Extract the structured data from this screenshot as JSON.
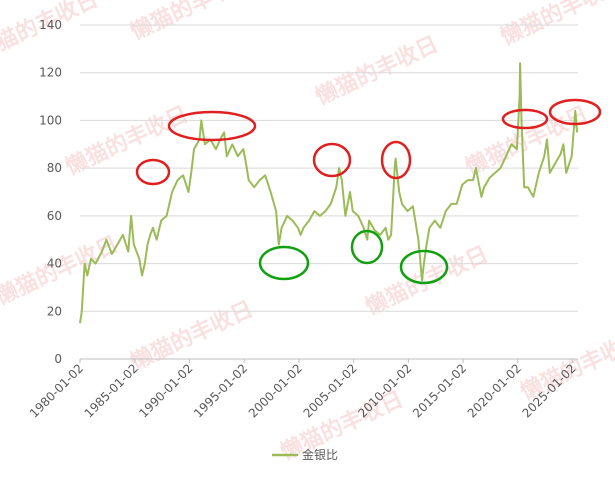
{
  "watermark": "懒猫的丰收日",
  "chart_data": {
    "type": "line",
    "x": [
      "1980-01-02",
      "1980-03-02",
      "1980-06-02",
      "1980-09-02",
      "1981-01-02",
      "1981-06-02",
      "1982-01-02",
      "1982-06-02",
      "1982-12-02",
      "1983-06-02",
      "1983-12-02",
      "1984-06-02",
      "1984-09-02",
      "1984-12-02",
      "1985-06-02",
      "1985-09-02",
      "1985-12-02",
      "1986-03-02",
      "1986-06-02",
      "1986-09-02",
      "1987-01-02",
      "1987-06-02",
      "1987-12-02",
      "1988-06-02",
      "1988-12-02",
      "1989-06-02",
      "1989-12-02",
      "1990-03-02",
      "1990-06-02",
      "1990-12-02",
      "1991-02-02",
      "1991-06-02",
      "1991-12-02",
      "1992-06-02",
      "1992-12-02",
      "1993-03-02",
      "1993-06-02",
      "1993-12-02",
      "1994-06-02",
      "1994-12-02",
      "1995-03-02",
      "1995-06-02",
      "1995-12-02",
      "1996-06-02",
      "1996-12-02",
      "1997-06-02",
      "1997-12-02",
      "1998-03-02",
      "1998-06-02",
      "1998-12-02",
      "1999-06-02",
      "1999-12-02",
      "2000-03-02",
      "2000-06-02",
      "2000-12-02",
      "2001-06-02",
      "2001-12-02",
      "2002-06-02",
      "2002-12-02",
      "2003-06-02",
      "2003-09-02",
      "2003-12-02",
      "2004-04-02",
      "2004-09-02",
      "2004-12-02",
      "2005-06-02",
      "2005-12-02",
      "2006-04-02",
      "2006-06-02",
      "2006-12-02",
      "2007-06-02",
      "2007-12-02",
      "2008-03-02",
      "2008-06-02",
      "2008-10-02",
      "2008-11-02",
      "2009-03-02",
      "2009-06-02",
      "2009-12-02",
      "2010-06-02",
      "2010-12-02",
      "2011-04-02",
      "2011-06-02",
      "2011-09-02",
      "2011-12-02",
      "2012-06-02",
      "2012-12-02",
      "2013-06-02",
      "2013-12-02",
      "2014-06-02",
      "2014-12-02",
      "2015-06-02",
      "2015-12-02",
      "2016-03-02",
      "2016-09-02",
      "2016-12-02",
      "2017-06-02",
      "2017-12-02",
      "2018-06-02",
      "2018-12-02",
      "2019-06-02",
      "2019-12-02",
      "2020-03-02",
      "2020-03-18",
      "2020-05-02",
      "2020-08-02",
      "2020-12-02",
      "2021-06-02",
      "2021-12-02",
      "2022-06-02",
      "2022-09-02",
      "2022-12-02",
      "2023-06-02",
      "2023-12-02",
      "2024-03-02",
      "2024-06-02",
      "2024-12-02",
      "2025-04-02",
      "2025-06-02"
    ],
    "series": [
      {
        "name": "金银比",
        "color": "#9bbb59",
        "values": [
          15,
          20,
          40,
          35,
          42,
          40,
          45,
          50,
          44,
          48,
          52,
          45,
          60,
          48,
          42,
          35,
          40,
          48,
          52,
          55,
          50,
          58,
          60,
          70,
          75,
          77,
          70,
          78,
          88,
          92,
          100,
          90,
          92,
          88,
          93,
          95,
          85,
          90,
          85,
          88,
          82,
          75,
          72,
          75,
          77,
          70,
          62,
          48,
          55,
          60,
          58,
          55,
          52,
          55,
          58,
          62,
          60,
          62,
          65,
          72,
          80,
          75,
          60,
          70,
          62,
          60,
          55,
          50,
          58,
          54,
          52,
          55,
          50,
          52,
          80,
          84,
          70,
          65,
          62,
          64,
          50,
          33,
          40,
          48,
          55,
          58,
          55,
          62,
          65,
          65,
          73,
          75,
          75,
          80,
          68,
          72,
          76,
          78,
          80,
          85,
          90,
          88,
          110,
          124,
          100,
          72,
          72,
          68,
          78,
          85,
          92,
          78,
          82,
          86,
          90,
          78,
          85,
          104,
          95
        ]
      }
    ],
    "xlim": [
      "1980-01-02",
      "2025-07-01"
    ],
    "xticks": [
      "1980-01-02",
      "1985-01-02",
      "1990-01-02",
      "1995-01-02",
      "2000-01-02",
      "2005-01-02",
      "2010-01-02",
      "2015-01-02",
      "2020-01-02",
      "2025-01-02"
    ],
    "ylim": [
      0,
      140
    ],
    "yticks": [
      0,
      20,
      40,
      60,
      80,
      100,
      120,
      140
    ],
    "grid": true,
    "legend": "bottom"
  }
}
